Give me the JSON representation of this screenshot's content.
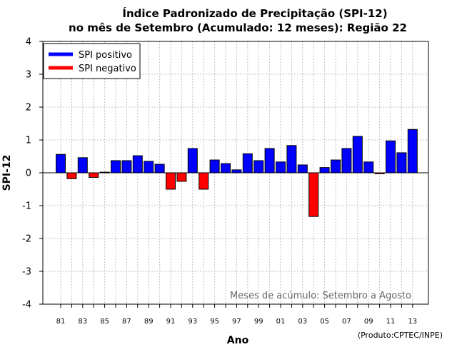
{
  "colors": {
    "positive": "#0000ff",
    "negative": "#ff0000",
    "grid": "#c0c0c0",
    "note": "#666666"
  },
  "chart_data": {
    "type": "bar",
    "title": [
      "Índice Padronizado de Precipitação (SPI-12)",
      "no mês de Setembro (Acumulado: 12 meses): Região 22"
    ],
    "xlabel": "Ano",
    "ylabel": "SPI-12",
    "ylim": [
      -4,
      4
    ],
    "yticks": [
      -4,
      -3,
      -2,
      -1,
      0,
      1,
      2,
      3,
      4
    ],
    "grid": true,
    "legend_position": "top-left",
    "legend": [
      {
        "label": "SPI positivo",
        "color": "#0000ff"
      },
      {
        "label": "SPI negativo",
        "color": "#ff0000"
      }
    ],
    "tick_labels": [
      "81",
      "83",
      "85",
      "87",
      "89",
      "91",
      "93",
      "95",
      "97",
      "99",
      "01",
      "03",
      "05",
      "07",
      "09",
      "11",
      "13"
    ],
    "categories": [
      "81",
      "82",
      "83",
      "84",
      "85",
      "86",
      "87",
      "88",
      "89",
      "90",
      "91",
      "92",
      "93",
      "94",
      "95",
      "96",
      "97",
      "98",
      "99",
      "00",
      "01",
      "02",
      "03",
      "04",
      "05",
      "06",
      "07",
      "08",
      "09",
      "10",
      "11",
      "12",
      "13"
    ],
    "values": [
      0.56,
      -0.18,
      0.46,
      -0.14,
      0.02,
      0.37,
      0.37,
      0.52,
      0.35,
      0.26,
      -0.5,
      -0.26,
      0.74,
      -0.5,
      0.39,
      0.28,
      0.09,
      0.58,
      0.37,
      0.74,
      0.33,
      0.83,
      0.24,
      -1.33,
      0.16,
      0.39,
      0.74,
      1.11,
      0.33,
      -0.03,
      0.97,
      0.61,
      1.32
    ],
    "annotation": "Meses de acúmulo: Setembro a Agosto",
    "credit": "(Produto:CPTEC/INPE)"
  }
}
